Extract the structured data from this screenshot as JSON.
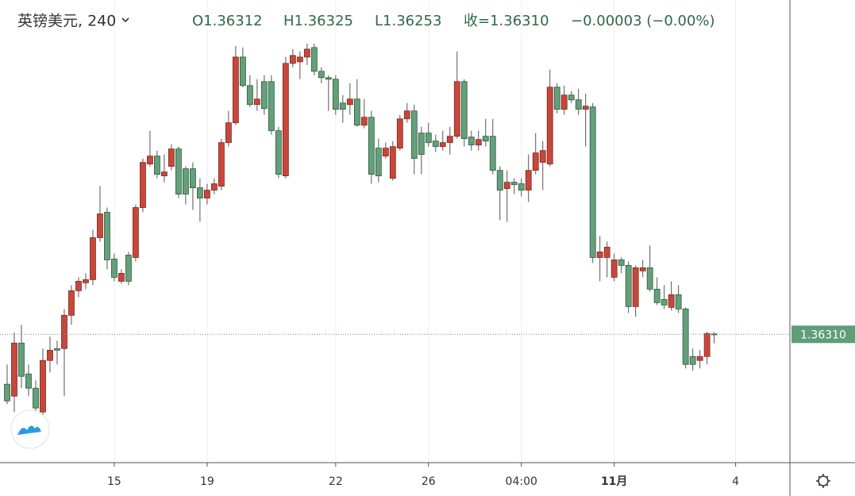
{
  "chart_data": {
    "type": "candlestick",
    "title": "英镑美元, 240",
    "ohlc_labels": [
      "O1.36312",
      "H1.36325",
      "L1.36253",
      "收=1.36310",
      "−0.00003 (−0.00%)"
    ],
    "xlim": [
      -1,
      109.6
    ],
    "ylim": [
      1.355,
      1.3842
    ],
    "grid": "vertical",
    "xticks": [
      {
        "value": 15,
        "label": "15"
      },
      {
        "value": 28,
        "label": "19"
      },
      {
        "value": 46,
        "label": "22"
      },
      {
        "value": 59,
        "label": "26"
      },
      {
        "value": 72,
        "label": "04:00"
      },
      {
        "value": 85,
        "label": "11月"
      },
      {
        "value": 102,
        "label": "4"
      }
    ],
    "last_price": {
      "value": 1.3631,
      "label": "1.36310"
    },
    "series": [
      {
        "up_color": "#c8473b",
        "down_color": "#64a07a",
        "open": [
          1.35995,
          1.3592,
          1.36255,
          1.3606,
          1.3597,
          1.3582,
          1.36145,
          1.3622,
          1.3622,
          1.3643,
          1.36585,
          1.36635,
          1.36655,
          1.3692,
          1.3708,
          1.36785,
          1.36645,
          1.3681,
          1.36795,
          1.3711,
          1.37385,
          1.37435,
          1.3731,
          1.3737,
          1.3748,
          1.37355,
          1.37355,
          1.37235,
          1.3717,
          1.3722,
          1.37245,
          1.3752,
          1.37645,
          1.3806,
          1.3788,
          1.3776,
          1.37905,
          1.37905,
          1.37595,
          1.3731,
          1.3802,
          1.3803,
          1.3806,
          1.3812,
          1.3797,
          1.3793,
          1.3792,
          1.3777,
          1.3776,
          1.37795,
          1.3763,
          1.3768,
          1.37485,
          1.37435,
          1.37295,
          1.37485,
          1.3767,
          1.3772,
          1.3758,
          1.3758,
          1.3753,
          1.37495,
          1.3752,
          1.3756,
          1.37905,
          1.37555,
          1.37505,
          1.3756,
          1.3756,
          1.37345,
          1.3723,
          1.3727,
          1.3726,
          1.3722,
          1.37345,
          1.37395,
          1.37385,
          1.3787,
          1.3773,
          1.3782,
          1.3779,
          1.3773,
          1.37745,
          1.36795,
          1.36795,
          1.3667,
          1.3678,
          1.36745,
          1.36485,
          1.3671,
          1.3673,
          1.36595,
          1.3653,
          1.3648,
          1.3656,
          1.3647,
          1.3617,
          1.36145,
          1.3617,
          1.36312
        ],
        "high": [
          1.3612,
          1.3632,
          1.3637,
          1.3612,
          1.3602,
          1.3622,
          1.36295,
          1.3627,
          1.3647,
          1.3662,
          1.3667,
          1.36695,
          1.3697,
          1.37245,
          1.3711,
          1.3682,
          1.3672,
          1.3683,
          1.3713,
          1.3742,
          1.37595,
          1.3747,
          1.37445,
          1.3751,
          1.37495,
          1.3737,
          1.37395,
          1.37295,
          1.3726,
          1.37295,
          1.37545,
          1.3772,
          1.3813,
          1.3812,
          1.37945,
          1.3792,
          1.37945,
          1.37945,
          1.3762,
          1.3806,
          1.3811,
          1.38095,
          1.38145,
          1.38145,
          1.37995,
          1.37945,
          1.37945,
          1.3782,
          1.37895,
          1.3792,
          1.37795,
          1.3772,
          1.37545,
          1.3752,
          1.3753,
          1.37695,
          1.3777,
          1.3776,
          1.3762,
          1.37645,
          1.3757,
          1.37595,
          1.3762,
          1.38095,
          1.3792,
          1.37595,
          1.37595,
          1.3767,
          1.3767,
          1.3737,
          1.37345,
          1.37295,
          1.37295,
          1.37445,
          1.3758,
          1.3753,
          1.3798,
          1.37895,
          1.3788,
          1.37845,
          1.3786,
          1.3783,
          1.3777,
          1.3693,
          1.36895,
          1.3682,
          1.36795,
          1.3677,
          1.36745,
          1.3678,
          1.3687,
          1.3667,
          1.3662,
          1.36645,
          1.3662,
          1.3648,
          1.3622,
          1.3621,
          1.36325,
          1.36325
        ],
        "low": [
          1.3587,
          1.3582,
          1.3597,
          1.3592,
          1.3582,
          1.35795,
          1.3607,
          1.3612,
          1.3592,
          1.3637,
          1.36545,
          1.36595,
          1.3662,
          1.36895,
          1.3672,
          1.36645,
          1.3663,
          1.3662,
          1.3677,
          1.3708,
          1.3737,
          1.37295,
          1.3727,
          1.37345,
          1.3717,
          1.3713,
          1.37095,
          1.3702,
          1.3713,
          1.37195,
          1.3722,
          1.37495,
          1.3763,
          1.3787,
          1.37745,
          1.3772,
          1.37695,
          1.3757,
          1.37295,
          1.37295,
          1.37995,
          1.3792,
          1.3801,
          1.37945,
          1.37895,
          1.3772,
          1.37695,
          1.37645,
          1.37695,
          1.3762,
          1.3761,
          1.3726,
          1.3727,
          1.3742,
          1.3728,
          1.3747,
          1.37645,
          1.3732,
          1.3732,
          1.37495,
          1.3746,
          1.3747,
          1.37445,
          1.37545,
          1.37495,
          1.3747,
          1.3747,
          1.37495,
          1.3732,
          1.3703,
          1.3702,
          1.37195,
          1.3718,
          1.37145,
          1.3732,
          1.3722,
          1.3737,
          1.37705,
          1.37695,
          1.3777,
          1.37695,
          1.37495,
          1.3676,
          1.36645,
          1.3667,
          1.36645,
          1.36695,
          1.36445,
          1.3642,
          1.3667,
          1.3658,
          1.36495,
          1.3647,
          1.3646,
          1.36445,
          1.36095,
          1.3608,
          1.36095,
          1.3612,
          1.36253
        ],
        "close": [
          1.3589,
          1.36255,
          1.36045,
          1.3597,
          1.35845,
          1.36145,
          1.3621,
          1.3621,
          1.3643,
          1.36585,
          1.36645,
          1.36655,
          1.3692,
          1.3707,
          1.3678,
          1.3667,
          1.36695,
          1.36645,
          1.3711,
          1.37395,
          1.37435,
          1.3732,
          1.37335,
          1.3748,
          1.37195,
          1.37195,
          1.37235,
          1.3717,
          1.3722,
          1.3726,
          1.3752,
          1.37645,
          1.3806,
          1.3788,
          1.3776,
          1.37795,
          1.37735,
          1.37595,
          1.3732,
          1.3802,
          1.3807,
          1.3806,
          1.3811,
          1.3797,
          1.3793,
          1.3792,
          1.3773,
          1.3773,
          1.37795,
          1.3763,
          1.3768,
          1.3732,
          1.3731,
          1.37485,
          1.37495,
          1.3767,
          1.3772,
          1.3742,
          1.37445,
          1.3752,
          1.37495,
          1.3752,
          1.3756,
          1.37905,
          1.37545,
          1.37505,
          1.3754,
          1.3753,
          1.37345,
          1.3722,
          1.3727,
          1.37255,
          1.3722,
          1.37345,
          1.37455,
          1.3747,
          1.3787,
          1.3773,
          1.3782,
          1.3779,
          1.3773,
          1.3775,
          1.36795,
          1.3683,
          1.3686,
          1.3678,
          1.36745,
          1.36485,
          1.3673,
          1.3673,
          1.36595,
          1.3651,
          1.36495,
          1.3656,
          1.3647,
          1.3612,
          1.3612,
          1.3617,
          1.36315,
          1.3631
        ]
      }
    ]
  }
}
